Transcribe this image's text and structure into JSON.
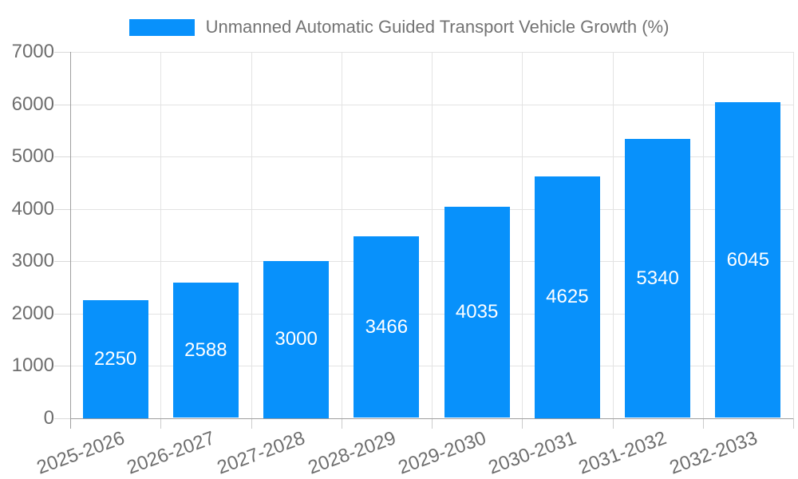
{
  "chart_data": {
    "type": "bar",
    "legend_label": "Unmanned Automatic Guided Transport Vehicle Growth (%)",
    "categories": [
      "2025-2026",
      "2026-2027",
      "2027-2028",
      "2028-2029",
      "2029-2030",
      "2030-2031",
      "2031-2032",
      "2032-2033"
    ],
    "values": [
      2250,
      2588,
      3000,
      3466,
      4035,
      4625,
      5340,
      6045
    ],
    "value_labels": [
      "2250",
      "2588",
      "3000",
      "3466",
      "4035",
      "4625",
      "5340",
      "6045"
    ],
    "yticks": [
      0,
      1000,
      2000,
      3000,
      4000,
      5000,
      6000,
      7000
    ],
    "ytick_labels": [
      "0",
      "1000",
      "2000",
      "3000",
      "4000",
      "5000",
      "6000",
      "7000"
    ],
    "ylim": [
      0,
      7000
    ],
    "xlabel": "",
    "ylabel": "",
    "grid": true,
    "legend_position": "top-center",
    "colors": {
      "bar": "#0891fb",
      "bar_value_text": "#ffffff",
      "axis_text": "#6e6e6e",
      "legend_text": "#737373",
      "gridline": "#e3e3e3",
      "axis_line": "#9e9e9e",
      "background": "#ffffff"
    }
  }
}
